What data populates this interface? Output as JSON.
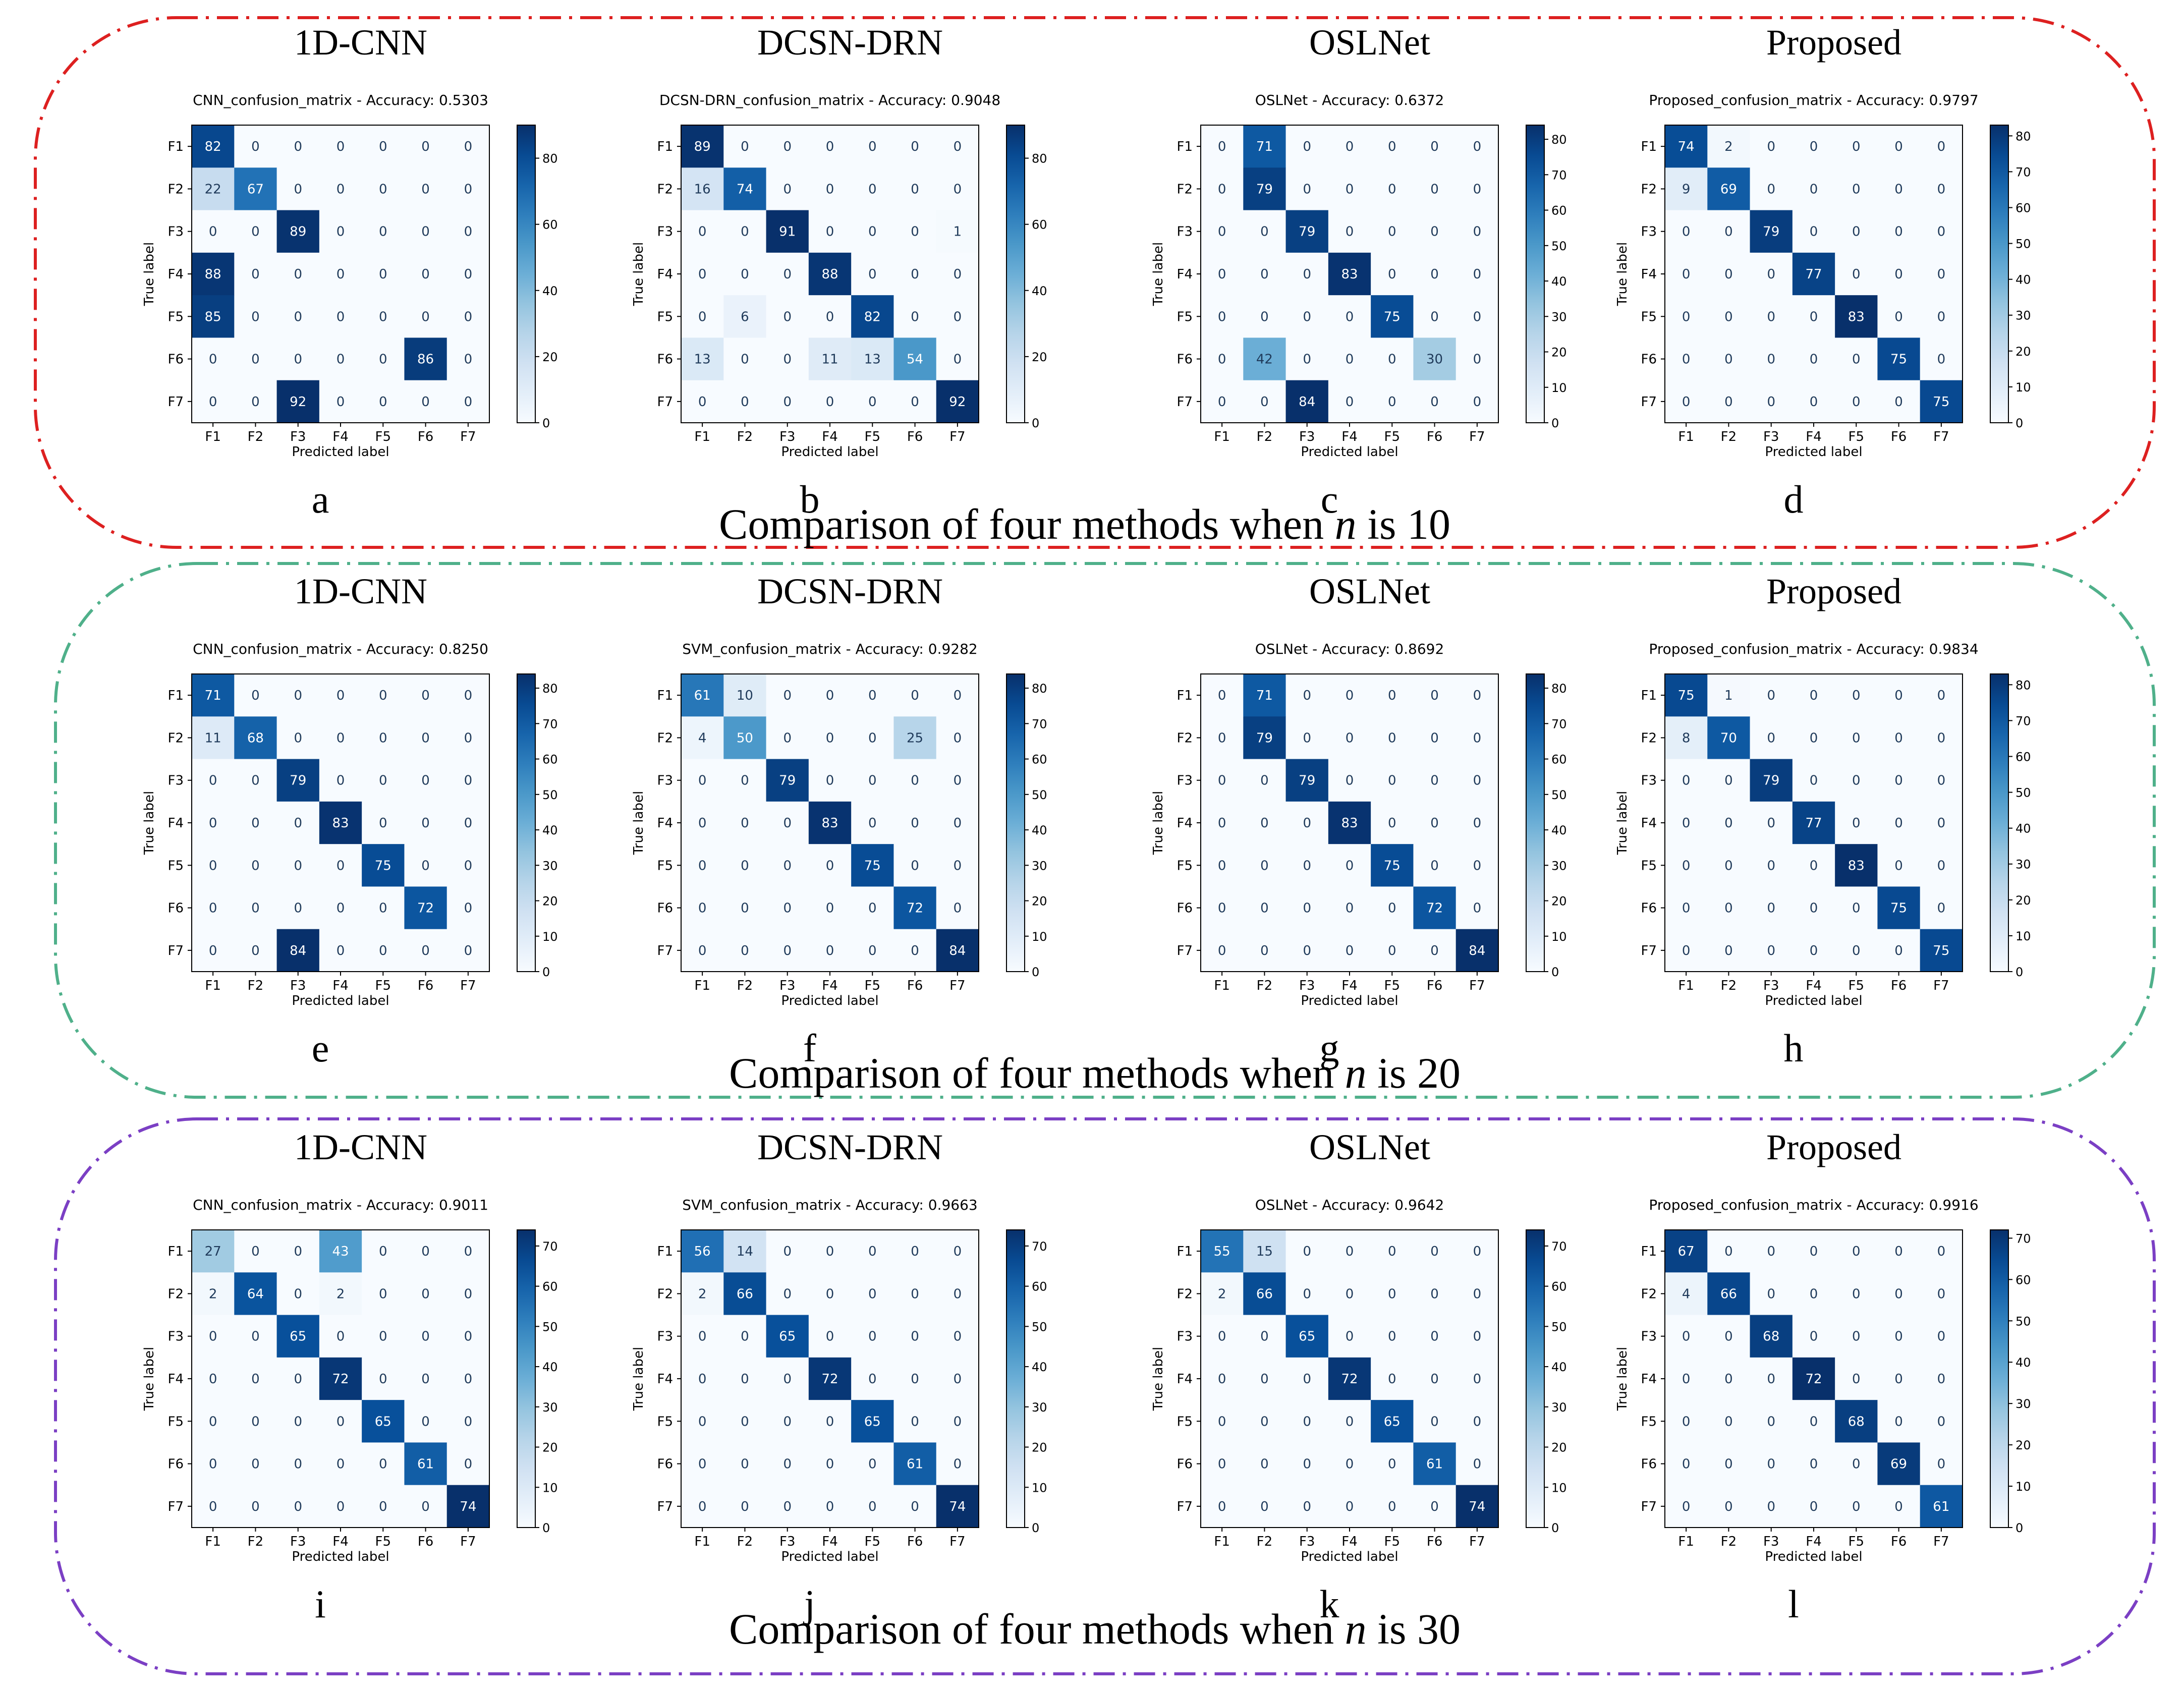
{
  "chart_data": {
    "type": "heatmap",
    "class_labels": [
      "F1",
      "F2",
      "F3",
      "F4",
      "F5",
      "F6",
      "F7"
    ],
    "xlabel": "Predicted label",
    "ylabel": "True label",
    "groups": [
      {
        "caption_prefix": "Comparison of four methods when",
        "caption_var": "n",
        "caption_suffix": "is 10",
        "border_color": "#dd2020",
        "panels": [
          {
            "letter": "a",
            "method": "1D-CNN",
            "subtitle": "CNN_confusion_matrix - Accuracy: 0.5303",
            "vmax": 90,
            "ticks": [
              0,
              20,
              40,
              60,
              80
            ],
            "matrix": [
              [
                82,
                0,
                0,
                0,
                0,
                0,
                0
              ],
              [
                22,
                67,
                0,
                0,
                0,
                0,
                0
              ],
              [
                0,
                0,
                89,
                0,
                0,
                0,
                0
              ],
              [
                88,
                0,
                0,
                0,
                0,
                0,
                0
              ],
              [
                85,
                0,
                0,
                0,
                0,
                0,
                0
              ],
              [
                0,
                0,
                0,
                0,
                0,
                86,
                0
              ],
              [
                0,
                0,
                92,
                0,
                0,
                0,
                0
              ]
            ]
          },
          {
            "letter": "b",
            "method": "DCSN-DRN",
            "subtitle": "DCSN-DRN_confusion_matrix - Accuracy: 0.9048",
            "vmax": 90,
            "ticks": [
              0,
              20,
              40,
              60,
              80
            ],
            "matrix": [
              [
                89,
                0,
                0,
                0,
                0,
                0,
                0
              ],
              [
                16,
                74,
                0,
                0,
                0,
                0,
                0
              ],
              [
                0,
                0,
                91,
                0,
                0,
                0,
                1
              ],
              [
                0,
                0,
                0,
                88,
                0,
                0,
                0
              ],
              [
                0,
                6,
                0,
                0,
                82,
                0,
                0
              ],
              [
                13,
                0,
                0,
                11,
                13,
                54,
                0
              ],
              [
                0,
                0,
                0,
                0,
                0,
                0,
                92
              ]
            ]
          },
          {
            "letter": "c",
            "method": "OSLNet",
            "subtitle": "OSLNet - Accuracy: 0.6372",
            "vmax": 84,
            "ticks": [
              0,
              10,
              20,
              30,
              40,
              50,
              60,
              70,
              80
            ],
            "matrix": [
              [
                0,
                71,
                0,
                0,
                0,
                0,
                0
              ],
              [
                0,
                79,
                0,
                0,
                0,
                0,
                0
              ],
              [
                0,
                0,
                79,
                0,
                0,
                0,
                0
              ],
              [
                0,
                0,
                0,
                83,
                0,
                0,
                0
              ],
              [
                0,
                0,
                0,
                0,
                75,
                0,
                0
              ],
              [
                0,
                42,
                0,
                0,
                0,
                30,
                0
              ],
              [
                0,
                0,
                84,
                0,
                0,
                0,
                0
              ]
            ]
          },
          {
            "letter": "d",
            "method": "Proposed",
            "subtitle": "Proposed_confusion_matrix - Accuracy: 0.9797",
            "vmax": 83,
            "ticks": [
              0,
              10,
              20,
              30,
              40,
              50,
              60,
              70,
              80
            ],
            "matrix": [
              [
                74,
                2,
                0,
                0,
                0,
                0,
                0
              ],
              [
                9,
                69,
                0,
                0,
                0,
                0,
                0
              ],
              [
                0,
                0,
                79,
                0,
                0,
                0,
                0
              ],
              [
                0,
                0,
                0,
                77,
                0,
                0,
                0
              ],
              [
                0,
                0,
                0,
                0,
                83,
                0,
                0
              ],
              [
                0,
                0,
                0,
                0,
                0,
                75,
                0
              ],
              [
                0,
                0,
                0,
                0,
                0,
                0,
                75
              ]
            ]
          }
        ]
      },
      {
        "caption_prefix": "Comparison of four methods when",
        "caption_var": "n",
        "caption_suffix": "is 20",
        "border_color": "#4fb08a",
        "panels": [
          {
            "letter": "e",
            "method": "1D-CNN",
            "subtitle": "CNN_confusion_matrix - Accuracy: 0.8250",
            "vmax": 84,
            "ticks": [
              0,
              10,
              20,
              30,
              40,
              50,
              60,
              70,
              80
            ],
            "matrix": [
              [
                71,
                0,
                0,
                0,
                0,
                0,
                0
              ],
              [
                11,
                68,
                0,
                0,
                0,
                0,
                0
              ],
              [
                0,
                0,
                79,
                0,
                0,
                0,
                0
              ],
              [
                0,
                0,
                0,
                83,
                0,
                0,
                0
              ],
              [
                0,
                0,
                0,
                0,
                75,
                0,
                0
              ],
              [
                0,
                0,
                0,
                0,
                0,
                72,
                0
              ],
              [
                0,
                0,
                84,
                0,
                0,
                0,
                0
              ]
            ]
          },
          {
            "letter": "f",
            "method": "DCSN-DRN",
            "subtitle": "SVM_confusion_matrix - Accuracy: 0.9282",
            "vmax": 84,
            "ticks": [
              0,
              10,
              20,
              30,
              40,
              50,
              60,
              70,
              80
            ],
            "matrix": [
              [
                61,
                10,
                0,
                0,
                0,
                0,
                0
              ],
              [
                4,
                50,
                0,
                0,
                0,
                25,
                0
              ],
              [
                0,
                0,
                79,
                0,
                0,
                0,
                0
              ],
              [
                0,
                0,
                0,
                83,
                0,
                0,
                0
              ],
              [
                0,
                0,
                0,
                0,
                75,
                0,
                0
              ],
              [
                0,
                0,
                0,
                0,
                0,
                72,
                0
              ],
              [
                0,
                0,
                0,
                0,
                0,
                0,
                84
              ]
            ]
          },
          {
            "letter": "g",
            "method": "OSLNet",
            "subtitle": "OSLNet - Accuracy: 0.8692",
            "vmax": 84,
            "ticks": [
              0,
              10,
              20,
              30,
              40,
              50,
              60,
              70,
              80
            ],
            "matrix": [
              [
                0,
                71,
                0,
                0,
                0,
                0,
                0
              ],
              [
                0,
                79,
                0,
                0,
                0,
                0,
                0
              ],
              [
                0,
                0,
                79,
                0,
                0,
                0,
                0
              ],
              [
                0,
                0,
                0,
                83,
                0,
                0,
                0
              ],
              [
                0,
                0,
                0,
                0,
                75,
                0,
                0
              ],
              [
                0,
                0,
                0,
                0,
                0,
                72,
                0
              ],
              [
                0,
                0,
                0,
                0,
                0,
                0,
                84
              ]
            ]
          },
          {
            "letter": "h",
            "method": "Proposed",
            "subtitle": "Proposed_confusion_matrix - Accuracy: 0.9834",
            "vmax": 83,
            "ticks": [
              0,
              10,
              20,
              30,
              40,
              50,
              60,
              70,
              80
            ],
            "matrix": [
              [
                75,
                1,
                0,
                0,
                0,
                0,
                0
              ],
              [
                8,
                70,
                0,
                0,
                0,
                0,
                0
              ],
              [
                0,
                0,
                79,
                0,
                0,
                0,
                0
              ],
              [
                0,
                0,
                0,
                77,
                0,
                0,
                0
              ],
              [
                0,
                0,
                0,
                0,
                83,
                0,
                0
              ],
              [
                0,
                0,
                0,
                0,
                0,
                75,
                0
              ],
              [
                0,
                0,
                0,
                0,
                0,
                0,
                75
              ]
            ]
          }
        ]
      },
      {
        "caption_prefix": "Comparison of four methods when",
        "caption_var": "n",
        "caption_suffix": "is 30",
        "border_color": "#7b3fc4",
        "panels": [
          {
            "letter": "i",
            "method": "1D-CNN",
            "subtitle": "CNN_confusion_matrix - Accuracy: 0.9011",
            "vmax": 74,
            "ticks": [
              0,
              10,
              20,
              30,
              40,
              50,
              60,
              70
            ],
            "matrix": [
              [
                27,
                0,
                0,
                43,
                0,
                0,
                0
              ],
              [
                2,
                64,
                0,
                2,
                0,
                0,
                0
              ],
              [
                0,
                0,
                65,
                0,
                0,
                0,
                0
              ],
              [
                0,
                0,
                0,
                72,
                0,
                0,
                0
              ],
              [
                0,
                0,
                0,
                0,
                65,
                0,
                0
              ],
              [
                0,
                0,
                0,
                0,
                0,
                61,
                0
              ],
              [
                0,
                0,
                0,
                0,
                0,
                0,
                74
              ]
            ]
          },
          {
            "letter": "j",
            "method": "DCSN-DRN",
            "subtitle": "SVM_confusion_matrix - Accuracy: 0.9663",
            "vmax": 74,
            "ticks": [
              0,
              10,
              20,
              30,
              40,
              50,
              60,
              70
            ],
            "matrix": [
              [
                56,
                14,
                0,
                0,
                0,
                0,
                0
              ],
              [
                2,
                66,
                0,
                0,
                0,
                0,
                0
              ],
              [
                0,
                0,
                65,
                0,
                0,
                0,
                0
              ],
              [
                0,
                0,
                0,
                72,
                0,
                0,
                0
              ],
              [
                0,
                0,
                0,
                0,
                65,
                0,
                0
              ],
              [
                0,
                0,
                0,
                0,
                0,
                61,
                0
              ],
              [
                0,
                0,
                0,
                0,
                0,
                0,
                74
              ]
            ]
          },
          {
            "letter": "k",
            "method": "OSLNet",
            "subtitle": "OSLNet - Accuracy: 0.9642",
            "vmax": 74,
            "ticks": [
              0,
              10,
              20,
              30,
              40,
              50,
              60,
              70
            ],
            "matrix": [
              [
                55,
                15,
                0,
                0,
                0,
                0,
                0
              ],
              [
                2,
                66,
                0,
                0,
                0,
                0,
                0
              ],
              [
                0,
                0,
                65,
                0,
                0,
                0,
                0
              ],
              [
                0,
                0,
                0,
                72,
                0,
                0,
                0
              ],
              [
                0,
                0,
                0,
                0,
                65,
                0,
                0
              ],
              [
                0,
                0,
                0,
                0,
                0,
                61,
                0
              ],
              [
                0,
                0,
                0,
                0,
                0,
                0,
                74
              ]
            ]
          },
          {
            "letter": "l",
            "method": "Proposed",
            "subtitle": "Proposed_confusion_matrix - Accuracy: 0.9916",
            "vmax": 72,
            "ticks": [
              0,
              10,
              20,
              30,
              40,
              50,
              60,
              70
            ],
            "matrix": [
              [
                67,
                0,
                0,
                0,
                0,
                0,
                0
              ],
              [
                4,
                66,
                0,
                0,
                0,
                0,
                0
              ],
              [
                0,
                0,
                68,
                0,
                0,
                0,
                0
              ],
              [
                0,
                0,
                0,
                72,
                0,
                0,
                0
              ],
              [
                0,
                0,
                0,
                0,
                68,
                0,
                0
              ],
              [
                0,
                0,
                0,
                0,
                0,
                69,
                0
              ],
              [
                0,
                0,
                0,
                0,
                0,
                0,
                61
              ]
            ]
          }
        ]
      }
    ]
  }
}
